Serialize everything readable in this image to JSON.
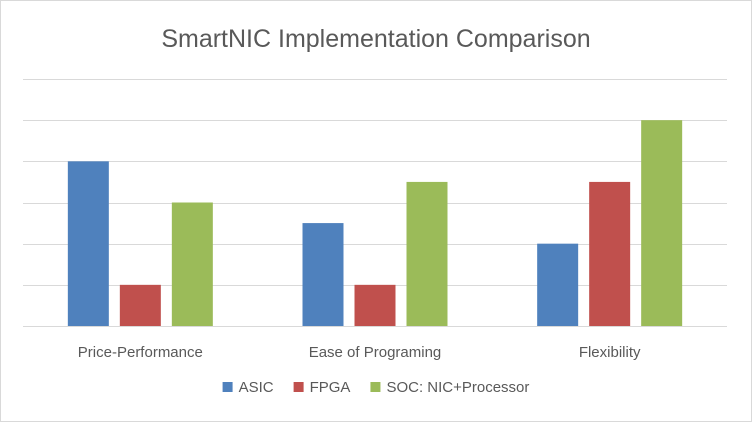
{
  "chart_data": {
    "type": "bar",
    "title": "SmartNIC Implementation Comparison",
    "xlabel": "",
    "ylabel": "",
    "categories": [
      "Price-Performance",
      "Ease of Programing",
      "Flexibility"
    ],
    "series": [
      {
        "name": "ASIC",
        "values": [
          4,
          2.5,
          2
        ],
        "color": "#4f81bd"
      },
      {
        "name": "FPGA",
        "values": [
          1,
          1,
          3.5
        ],
        "color": "#c0504d"
      },
      {
        "name": "SOC: NIC+Processor",
        "values": [
          3,
          3.5,
          5
        ],
        "color": "#9bbb59"
      }
    ],
    "ylim": [
      0,
      6
    ],
    "y_tick_step": 1,
    "y_tick_labels_shown": false,
    "grid": true,
    "legend": "bottom"
  }
}
